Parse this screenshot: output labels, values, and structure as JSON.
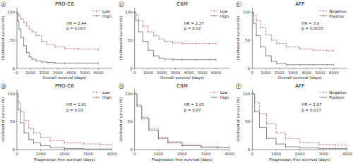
{
  "chart_data": [
    {
      "type": "step",
      "panel_label": "Ⓐ",
      "title": "PRO-C6",
      "x_label": "Overall survival (days)",
      "y_label": "Likelihood of survival (%)",
      "annotations": [
        "HR = 2.44",
        "p = 0.003"
      ],
      "x": [
        0,
        50,
        150,
        300,
        500,
        700,
        900,
        1100,
        1400,
        1800,
        2200,
        2800,
        3500,
        4500,
        6000
      ],
      "series": [
        {
          "name": "Low",
          "color": "#c87878",
          "line_style": "dashed",
          "marker": "tick",
          "values": [
            100,
            97,
            93,
            88,
            82,
            76,
            70,
            65,
            58,
            48,
            42,
            38,
            35,
            34,
            33
          ]
        },
        {
          "name": "High",
          "color": "#7a7a7a",
          "line_style": "solid",
          "marker": "tick",
          "values": [
            100,
            85,
            70,
            55,
            40,
            28,
            20,
            16,
            13,
            11,
            10,
            9,
            9,
            9,
            9
          ]
        }
      ],
      "xlim": [
        0,
        7000
      ],
      "xticks": [
        0,
        1000,
        2000,
        3000,
        4000,
        5000,
        6000
      ],
      "ylim": [
        0,
        108
      ],
      "yticks": [
        0,
        50,
        100
      ],
      "legend": "upper right",
      "grid": false
    },
    {
      "type": "step",
      "panel_label": "Ⓒ",
      "title": "C6M",
      "x_label": "Overall survival (days)",
      "y_label": "Likelihood of survival (%)",
      "annotations": [
        "HR = 2.37",
        "p = 0.02"
      ],
      "x": [
        0,
        100,
        300,
        600,
        1000,
        1400,
        1800,
        2200,
        2800,
        3500,
        4500,
        5500,
        6000
      ],
      "series": [
        {
          "name": "Low",
          "color": "#c87878",
          "line_style": "dashed",
          "marker": "tick",
          "values": [
            100,
            95,
            85,
            75,
            65,
            58,
            52,
            48,
            45,
            44,
            44,
            44,
            44
          ]
        },
        {
          "name": "High",
          "color": "#7a7a7a",
          "line_style": "solid",
          "marker": "tick",
          "values": [
            100,
            85,
            65,
            48,
            32,
            22,
            18,
            16,
            15,
            15,
            15,
            15,
            15
          ]
        }
      ],
      "xlim": [
        0,
        7000
      ],
      "xticks": [
        0,
        1000,
        2000,
        3000,
        4000,
        5000,
        6000
      ],
      "ylim": [
        0,
        108
      ],
      "yticks": [
        0,
        50,
        100
      ],
      "legend": "upper right",
      "grid": false
    },
    {
      "type": "step",
      "panel_label": "Ⓔ",
      "title": "AFP",
      "x_label": "Overall survival (days)",
      "y_label": "Likelihood of survival (%)",
      "annotations": [
        "HR = 3.0",
        "p = 0.0015"
      ],
      "x": [
        0,
        100,
        300,
        600,
        1000,
        1400,
        1800,
        2500,
        3500,
        4500,
        5500,
        6000
      ],
      "series": [
        {
          "name": "Negative",
          "color": "#c87878",
          "line_style": "dashed",
          "marker": "tick",
          "values": [
            100,
            95,
            85,
            72,
            60,
            50,
            44,
            38,
            34,
            32,
            31,
            31
          ]
        },
        {
          "name": "Positive",
          "color": "#7a7a7a",
          "line_style": "solid",
          "marker": "tick",
          "values": [
            100,
            80,
            58,
            38,
            22,
            12,
            8,
            6,
            6,
            6,
            6,
            6
          ]
        }
      ],
      "xlim": [
        0,
        7000
      ],
      "xticks": [
        0,
        1000,
        2000,
        3000,
        4000,
        5000,
        6000
      ],
      "ylim": [
        0,
        108
      ],
      "yticks": [
        0,
        50,
        100
      ],
      "legend": "upper right",
      "grid": false
    },
    {
      "type": "step",
      "panel_label": "Ⓑ",
      "title": "PRO-C6",
      "x_label": "Progression free survival (days)",
      "y_label": "Likelihood of survival (%)",
      "annotations": [
        "HR = 1.91",
        "p = 0.01"
      ],
      "x": [
        0,
        50,
        150,
        300,
        500,
        700,
        1000,
        1400,
        2000,
        2800,
        3500,
        4000
      ],
      "series": [
        {
          "name": "Low",
          "color": "#c87878",
          "line_style": "dashed",
          "marker": "tick",
          "values": [
            100,
            85,
            68,
            52,
            38,
            30,
            22,
            16,
            12,
            10,
            9,
            8
          ]
        },
        {
          "name": "High",
          "color": "#7a7a7a",
          "line_style": "solid",
          "marker": "tick",
          "values": [
            100,
            72,
            48,
            30,
            18,
            12,
            7,
            4,
            2,
            1,
            1,
            1
          ]
        }
      ],
      "xlim": [
        0,
        4000
      ],
      "xticks": [
        0,
        1000,
        2000,
        3000,
        4000
      ],
      "ylim": [
        0,
        108
      ],
      "yticks": [
        0,
        50,
        100
      ],
      "legend": "upper right",
      "grid": false
    },
    {
      "type": "step",
      "panel_label": "Ⓓ",
      "title": "C6M",
      "x_label": "Progression free survival (days)",
      "y_label": "Likelihood of survival (%)",
      "annotations": [
        "HR = 1.05",
        "p = 0.87"
      ],
      "x": [
        0,
        100,
        300,
        600,
        1000,
        1400,
        2000,
        2800,
        3500,
        4000
      ],
      "series": [
        {
          "name": "Low",
          "color": "#c87878",
          "line_style": "dashed",
          "marker": "tick",
          "values": [
            100,
            80,
            58,
            38,
            22,
            14,
            8,
            5,
            4,
            4
          ]
        },
        {
          "name": "High",
          "color": "#7a7a7a",
          "line_style": "solid",
          "marker": "tick",
          "values": [
            100,
            78,
            55,
            35,
            20,
            12,
            7,
            4,
            4,
            4
          ]
        }
      ],
      "xlim": [
        0,
        4000
      ],
      "xticks": [
        0,
        1000,
        2000,
        3000,
        4000
      ],
      "ylim": [
        0,
        108
      ],
      "yticks": [
        0,
        50,
        100
      ],
      "legend": "upper right",
      "grid": false
    },
    {
      "type": "step",
      "panel_label": "Ⓕ",
      "title": "AFP",
      "x_label": "Progression free survival (days)",
      "y_label": "Likelihood of survival (%)",
      "annotations": [
        "HR = 1.87",
        "p = 0.017"
      ],
      "x": [
        0,
        100,
        300,
        600,
        1000,
        1400,
        2000,
        2800,
        3500,
        4000
      ],
      "series": [
        {
          "name": "Negative",
          "color": "#c87878",
          "line_style": "dashed",
          "marker": "tick",
          "values": [
            100,
            85,
            65,
            46,
            30,
            20,
            13,
            9,
            8,
            7
          ]
        },
        {
          "name": "Positive",
          "color": "#7a7a7a",
          "line_style": "solid",
          "marker": "tick",
          "values": [
            100,
            68,
            40,
            20,
            10,
            5,
            3,
            2,
            2,
            2
          ]
        }
      ],
      "xlim": [
        0,
        4000
      ],
      "xticks": [
        0,
        1000,
        2000,
        3000,
        4000
      ],
      "ylim": [
        0,
        108
      ],
      "yticks": [
        0,
        50,
        100
      ],
      "legend": "upper right",
      "grid": false
    }
  ]
}
